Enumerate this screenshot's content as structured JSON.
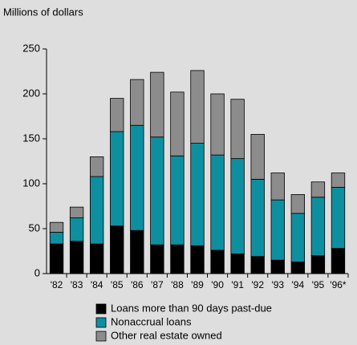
{
  "chart_data": {
    "type": "stacked-bar",
    "y_label": "Millions of dollars",
    "categories": [
      "'82",
      "'83",
      "'84",
      "'85",
      "'86",
      "'87",
      "'88",
      "'89",
      "'90",
      "'91",
      "'92",
      "'93",
      "'94",
      "'95",
      "'96*"
    ],
    "series": [
      {
        "name": "Loans more than 90 days past-due",
        "color": "#000000",
        "values": [
          33,
          36,
          33,
          53,
          48,
          32,
          32,
          31,
          26,
          22,
          19,
          15,
          13,
          20,
          28
        ]
      },
      {
        "name": "Nonaccrual loans",
        "color": "#0e8fa0",
        "values": [
          13,
          26,
          75,
          105,
          117,
          120,
          99,
          114,
          106,
          106,
          86,
          67,
          54,
          65,
          68
        ]
      },
      {
        "name": "Other real estate owned",
        "color": "#8c8c8c",
        "values": [
          11,
          12,
          22,
          37,
          51,
          72,
          71,
          81,
          68,
          66,
          50,
          30,
          21,
          17,
          16
        ]
      }
    ],
    "ylim": [
      0,
      250
    ],
    "yticks": [
      0,
      50,
      100,
      150,
      200,
      250
    ]
  }
}
